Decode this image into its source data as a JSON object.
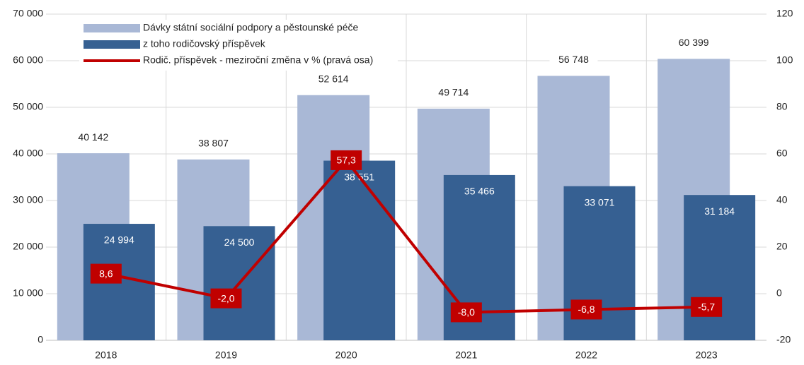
{
  "chart_data": {
    "type": "bar",
    "categories": [
      "2018",
      "2019",
      "2020",
      "2021",
      "2022",
      "2023"
    ],
    "series": [
      {
        "name": "Dávky státní sociální podpory a pěstounské péče",
        "color": "#a9b8d6",
        "values": [
          40142,
          38807,
          52614,
          49714,
          56748,
          60399
        ],
        "value_labels": [
          "40 142",
          "38 807",
          "52 614",
          "49 714",
          "56 748",
          "60 399"
        ]
      },
      {
        "name": "z toho rodičovský příspěvek",
        "color": "#366092",
        "values": [
          24994,
          24500,
          38551,
          35466,
          33071,
          31184
        ],
        "value_labels": [
          "24 994",
          "24 500",
          "38 551",
          "35 466",
          "33 071",
          "31 184"
        ]
      },
      {
        "name": "Rodič. příspěvek - meziroční změna v % (pravá osa)",
        "color": "#c00000",
        "type": "line",
        "axis": "y2",
        "values": [
          8.6,
          -2.0,
          57.3,
          -8.0,
          -6.8,
          -5.7
        ],
        "value_labels": [
          "8,6",
          "-2,0",
          "57,3",
          "-8,0",
          "-6,8",
          "-5,7"
        ]
      }
    ],
    "ylim": [
      0,
      70000
    ],
    "yticks": [
      0,
      {
        "value": 10000,
        "label": "10 000"
      },
      {
        "value": 20000,
        "label": "20 000"
      },
      {
        "value": 30000,
        "label": "30 000"
      },
      {
        "value": 40000,
        "label": "40 000"
      },
      {
        "value": 50000,
        "label": "50 000"
      },
      {
        "value": 60000,
        "label": "60 000"
      },
      {
        "value": 70000,
        "label": "70 000"
      }
    ],
    "y2lim": [
      -20,
      120
    ],
    "y2ticks": [
      -20,
      0,
      20,
      40,
      60,
      80,
      100,
      120
    ],
    "grid": true,
    "legend": "top-left"
  }
}
